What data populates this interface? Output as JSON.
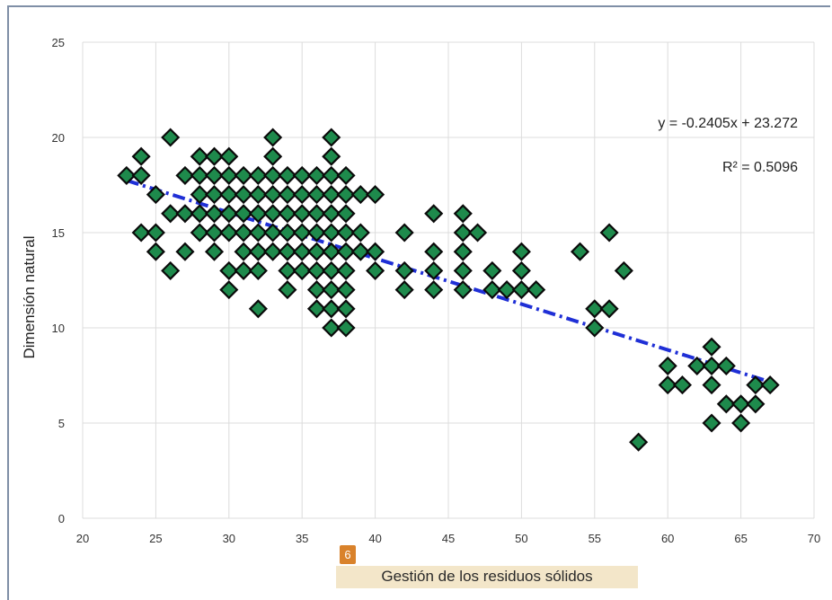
{
  "badge": "6",
  "chart_data": {
    "type": "scatter",
    "title": "",
    "xlabel": "Gestión de los residuos sólidos",
    "ylabel": "Dimensión natural",
    "xlim": [
      20,
      70
    ],
    "ylim": [
      0,
      25
    ],
    "x_ticks": [
      20,
      25,
      30,
      35,
      40,
      45,
      50,
      55,
      60,
      65,
      70
    ],
    "y_ticks": [
      0,
      5,
      10,
      15,
      20,
      25
    ],
    "grid": true,
    "marker": "diamond",
    "marker_color": "#1e8a4c",
    "trendline": {
      "equation": "y = -0.2405x + 23.272",
      "r_squared": "R² = 0.5096",
      "slope": -0.2405,
      "intercept": 23.272,
      "x_range": [
        23,
        67
      ],
      "color": "#1f2fd6"
    },
    "points": [
      [
        23,
        18
      ],
      [
        24,
        19
      ],
      [
        24,
        18
      ],
      [
        24,
        15
      ],
      [
        25,
        17
      ],
      [
        25,
        15
      ],
      [
        25,
        14
      ],
      [
        26,
        20
      ],
      [
        26,
        16
      ],
      [
        26,
        13
      ],
      [
        27,
        18
      ],
      [
        27,
        16
      ],
      [
        27,
        14
      ],
      [
        28,
        19
      ],
      [
        28,
        18
      ],
      [
        28,
        17
      ],
      [
        28,
        16
      ],
      [
        28,
        15
      ],
      [
        29,
        19
      ],
      [
        29,
        18
      ],
      [
        29,
        17
      ],
      [
        29,
        16
      ],
      [
        29,
        15
      ],
      [
        29,
        14
      ],
      [
        30,
        19
      ],
      [
        30,
        18
      ],
      [
        30,
        17
      ],
      [
        30,
        16
      ],
      [
        30,
        15
      ],
      [
        30,
        13
      ],
      [
        30,
        12
      ],
      [
        31,
        18
      ],
      [
        31,
        17
      ],
      [
        31,
        16
      ],
      [
        31,
        15
      ],
      [
        31,
        14
      ],
      [
        31,
        13
      ],
      [
        32,
        18
      ],
      [
        32,
        17
      ],
      [
        32,
        16
      ],
      [
        32,
        15
      ],
      [
        32,
        14
      ],
      [
        32,
        13
      ],
      [
        32,
        11
      ],
      [
        33,
        20
      ],
      [
        33,
        19
      ],
      [
        33,
        18
      ],
      [
        33,
        17
      ],
      [
        33,
        16
      ],
      [
        33,
        15
      ],
      [
        33,
        14
      ],
      [
        34,
        18
      ],
      [
        34,
        17
      ],
      [
        34,
        16
      ],
      [
        34,
        15
      ],
      [
        34,
        14
      ],
      [
        34,
        13
      ],
      [
        34,
        12
      ],
      [
        35,
        18
      ],
      [
        35,
        17
      ],
      [
        35,
        16
      ],
      [
        35,
        15
      ],
      [
        35,
        14
      ],
      [
        35,
        13
      ],
      [
        36,
        18
      ],
      [
        36,
        17
      ],
      [
        36,
        16
      ],
      [
        36,
        15
      ],
      [
        36,
        14
      ],
      [
        36,
        13
      ],
      [
        36,
        12
      ],
      [
        36,
        11
      ],
      [
        37,
        20
      ],
      [
        37,
        19
      ],
      [
        37,
        18
      ],
      [
        37,
        17
      ],
      [
        37,
        16
      ],
      [
        37,
        15
      ],
      [
        37,
        14
      ],
      [
        37,
        13
      ],
      [
        37,
        12
      ],
      [
        37,
        11
      ],
      [
        37,
        10
      ],
      [
        38,
        18
      ],
      [
        38,
        17
      ],
      [
        38,
        16
      ],
      [
        38,
        15
      ],
      [
        38,
        14
      ],
      [
        38,
        13
      ],
      [
        38,
        12
      ],
      [
        38,
        11
      ],
      [
        38,
        10
      ],
      [
        39,
        17
      ],
      [
        39,
        15
      ],
      [
        39,
        14
      ],
      [
        40,
        17
      ],
      [
        40,
        14
      ],
      [
        40,
        13
      ],
      [
        42,
        15
      ],
      [
        42,
        13
      ],
      [
        42,
        12
      ],
      [
        44,
        16
      ],
      [
        44,
        14
      ],
      [
        44,
        13
      ],
      [
        44,
        12
      ],
      [
        46,
        16
      ],
      [
        46,
        15
      ],
      [
        46,
        14
      ],
      [
        46,
        13
      ],
      [
        46,
        12
      ],
      [
        47,
        15
      ],
      [
        48,
        13
      ],
      [
        48,
        12
      ],
      [
        49,
        12
      ],
      [
        50,
        14
      ],
      [
        50,
        13
      ],
      [
        50,
        12
      ],
      [
        51,
        12
      ],
      [
        54,
        14
      ],
      [
        55,
        11
      ],
      [
        55,
        10
      ],
      [
        56,
        15
      ],
      [
        56,
        11
      ],
      [
        57,
        13
      ],
      [
        58,
        4
      ],
      [
        60,
        8
      ],
      [
        60,
        7
      ],
      [
        61,
        7
      ],
      [
        62,
        8
      ],
      [
        63,
        9
      ],
      [
        63,
        8
      ],
      [
        63,
        7
      ],
      [
        63,
        5
      ],
      [
        64,
        8
      ],
      [
        64,
        6
      ],
      [
        65,
        6
      ],
      [
        65,
        5
      ],
      [
        66,
        7
      ],
      [
        66,
        6
      ],
      [
        67,
        7
      ]
    ]
  }
}
